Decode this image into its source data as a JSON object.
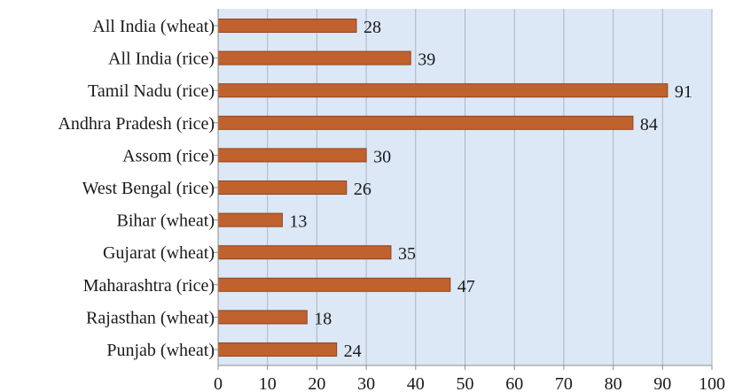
{
  "chart_data": {
    "type": "bar",
    "orientation": "horizontal",
    "title": "",
    "xlabel": "",
    "ylabel": "",
    "categories": [
      "All India (wheat)",
      "All India (rice)",
      "Tamil Nadu (rice)",
      "Andhra Pradesh (rice)",
      "Assom (rice)",
      "West Bengal (rice)",
      "Bihar (wheat)",
      "Gujarat (wheat)",
      "Maharashtra (rice)",
      "Rajasthan (wheat)",
      "Punjab (wheat)"
    ],
    "values": [
      28,
      39,
      91,
      84,
      30,
      26,
      13,
      35,
      47,
      18,
      24
    ],
    "xlim": [
      0,
      100
    ],
    "xticks": [
      0,
      10,
      20,
      30,
      40,
      50,
      60,
      70,
      80,
      90,
      100
    ],
    "grid": true,
    "legend": "none",
    "colors": {
      "bar": "#c0622e",
      "bar_edge": "#8e4520",
      "plot_background": "#dce8f5",
      "gridline": "#a8b6c6"
    }
  }
}
